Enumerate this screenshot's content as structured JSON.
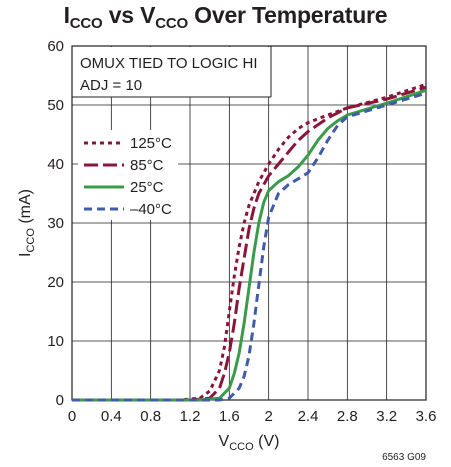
{
  "chart_data": {
    "type": "line",
    "title": {
      "main1": "I",
      "sub1": "CCO",
      "mid": " vs V",
      "sub2": "CCO",
      "tail": " Over Temperature"
    },
    "xlabel": {
      "main": "V",
      "sub": "CCO",
      "tail": " (V)"
    },
    "ylabel": {
      "main": "I",
      "sub": "CCO",
      "tail": " (mA)"
    },
    "xlim": [
      0,
      3.6
    ],
    "ylim": [
      0,
      60
    ],
    "xticks": [
      "0",
      "0.4",
      "0.8",
      "1.2",
      "1.6",
      "2",
      "2.4",
      "2.8",
      "3.2",
      "3.6"
    ],
    "yticks": [
      "0",
      "10",
      "20",
      "30",
      "40",
      "50",
      "60"
    ],
    "grid": true,
    "annotations": [
      "OMUX TIED TO LOGIC HI",
      "ADJ = 10"
    ],
    "figure_id": "6563 G09",
    "legend_placement": "left",
    "series": [
      {
        "name": "125°C",
        "color": "#8b1538",
        "dash": "4,4",
        "x": [
          0,
          1.1,
          1.3,
          1.4,
          1.5,
          1.55,
          1.6,
          1.65,
          1.7,
          1.75,
          1.8,
          1.9,
          2.0,
          2.1,
          2.2,
          2.3,
          2.4,
          2.6,
          2.8,
          3.2,
          3.6
        ],
        "y": [
          0,
          0,
          0.3,
          1.5,
          5,
          9,
          15,
          21,
          26,
          30,
          33,
          37,
          40,
          42.5,
          44.5,
          46,
          47,
          48.3,
          49.5,
          51.3,
          53.5
        ]
      },
      {
        "name": "85°C",
        "color": "#8b1538",
        "dash": "14,5",
        "x": [
          0,
          1.2,
          1.4,
          1.5,
          1.55,
          1.6,
          1.65,
          1.7,
          1.75,
          1.8,
          1.85,
          1.9,
          2.0,
          2.1,
          2.2,
          2.3,
          2.4,
          2.6,
          2.8,
          3.2,
          3.6
        ],
        "y": [
          0,
          0,
          0.3,
          2,
          4.5,
          8,
          13,
          19,
          24,
          29,
          32.5,
          35,
          38,
          40,
          42,
          44,
          45.5,
          47.8,
          49.5,
          51,
          53
        ]
      },
      {
        "name": "25°C",
        "color": "#3a9b4a",
        "dash": "",
        "x": [
          0,
          1.3,
          1.5,
          1.6,
          1.65,
          1.7,
          1.75,
          1.8,
          1.85,
          1.9,
          1.95,
          2.0,
          2.1,
          2.2,
          2.3,
          2.4,
          2.5,
          2.6,
          2.7,
          2.8,
          3.2,
          3.6
        ],
        "y": [
          0,
          0,
          0.3,
          2,
          4.5,
          8,
          13,
          19,
          25,
          30,
          33.5,
          35.5,
          37,
          38,
          39.5,
          41.5,
          44,
          46,
          47.3,
          48.3,
          50.3,
          52.5
        ]
      },
      {
        "name": "–40°C",
        "color": "#3f5ba9",
        "dash": "8,5",
        "x": [
          0,
          1.5,
          1.6,
          1.7,
          1.75,
          1.8,
          1.85,
          1.9,
          1.95,
          2.0,
          2.1,
          2.2,
          2.3,
          2.4,
          2.5,
          2.6,
          2.7,
          2.8,
          3.2,
          3.6
        ],
        "y": [
          0,
          0,
          0.3,
          2,
          4,
          7.5,
          13,
          19.5,
          26,
          31,
          35,
          36.5,
          37.5,
          38.5,
          41,
          44,
          46.5,
          48,
          50,
          52
        ]
      }
    ]
  }
}
